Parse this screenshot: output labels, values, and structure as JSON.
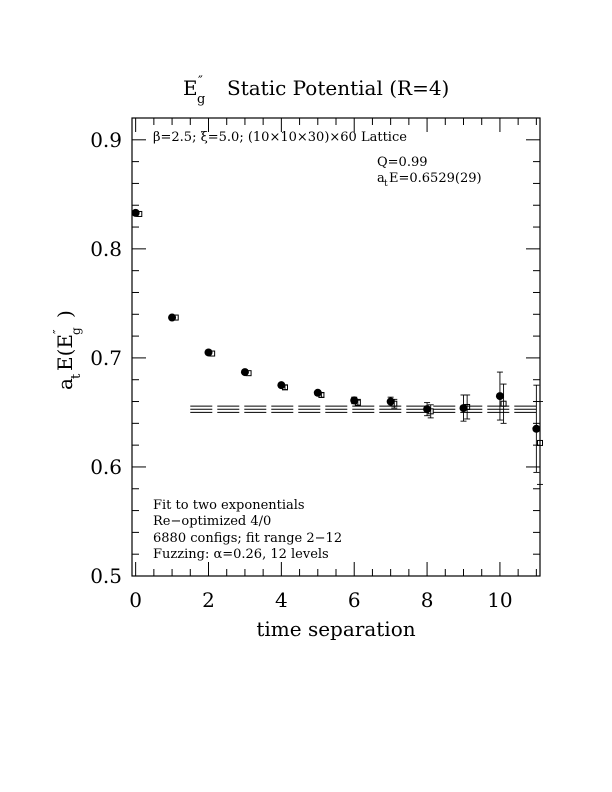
{
  "chart_data": {
    "type": "scatter",
    "title": {
      "main": "E",
      "sup": "″",
      "sub": "g",
      "rest": "Static Potential (R=4)"
    },
    "xlabel": "time separation",
    "ylabel": {
      "pre": "a",
      "pre_sub": "t",
      "mid": "E(E",
      "sup": "″",
      "sub": "g",
      "post": ")"
    },
    "xlim": [
      -0.1,
      11.1
    ],
    "ylim": [
      0.5,
      0.92
    ],
    "x_ticks": [
      0,
      2,
      4,
      6,
      8,
      10
    ],
    "x_tick_labels": [
      "0",
      "2",
      "4",
      "6",
      "8",
      "10"
    ],
    "y_ticks": [
      0.5,
      0.6,
      0.7,
      0.8,
      0.9
    ],
    "y_tick_labels": [
      "0.5",
      "0.6",
      "0.7",
      "0.8",
      "0.9"
    ],
    "x_minor_step": 0.5,
    "y_minor_step": 0.02,
    "grid": false,
    "lattice_note": "β=2.5; ξ=5.0; (10×10×30)×60 Lattice",
    "fit_quality": "Q=0.99",
    "fit_energy": {
      "pre": "a",
      "pre_sub": "t",
      "post": "E=0.6529(29)"
    },
    "info_lines": [
      "Fit to two exponentials",
      "Re−optimized 4/0",
      "6880 configs; fit range 2−12",
      "Fuzzing: α=0.26, 12 levels"
    ],
    "series": [
      {
        "marker": "filled-circle",
        "x": [
          0,
          1,
          2,
          3,
          4,
          5,
          6,
          7,
          8,
          9,
          10,
          11
        ],
        "y": [
          0.833,
          0.737,
          0.705,
          0.687,
          0.675,
          0.668,
          0.661,
          0.66,
          0.653,
          0.654,
          0.665,
          0.635
        ],
        "err": [
          0.001,
          0.001,
          0.001,
          0.001,
          0.002,
          0.002,
          0.003,
          0.004,
          0.006,
          0.012,
          0.022,
          0.04
        ]
      },
      {
        "marker": "open-square",
        "x": [
          0.1,
          1.1,
          2.1,
          3.1,
          4.1,
          5.1,
          6.1,
          7.1,
          8.1,
          9.1,
          10.1,
          11.1
        ],
        "y": [
          0.832,
          0.737,
          0.704,
          0.686,
          0.673,
          0.666,
          0.659,
          0.658,
          0.651,
          0.655,
          0.658,
          0.622
        ],
        "err": [
          0.001,
          0.001,
          0.001,
          0.001,
          0.002,
          0.002,
          0.003,
          0.004,
          0.006,
          0.011,
          0.018,
          0.038
        ]
      }
    ],
    "fit": {
      "x_range": [
        1.5,
        11.1
      ],
      "value": 0.6529,
      "error": 0.0029
    },
    "colors": {
      "ink": "#000000",
      "background": "#ffffff"
    }
  }
}
